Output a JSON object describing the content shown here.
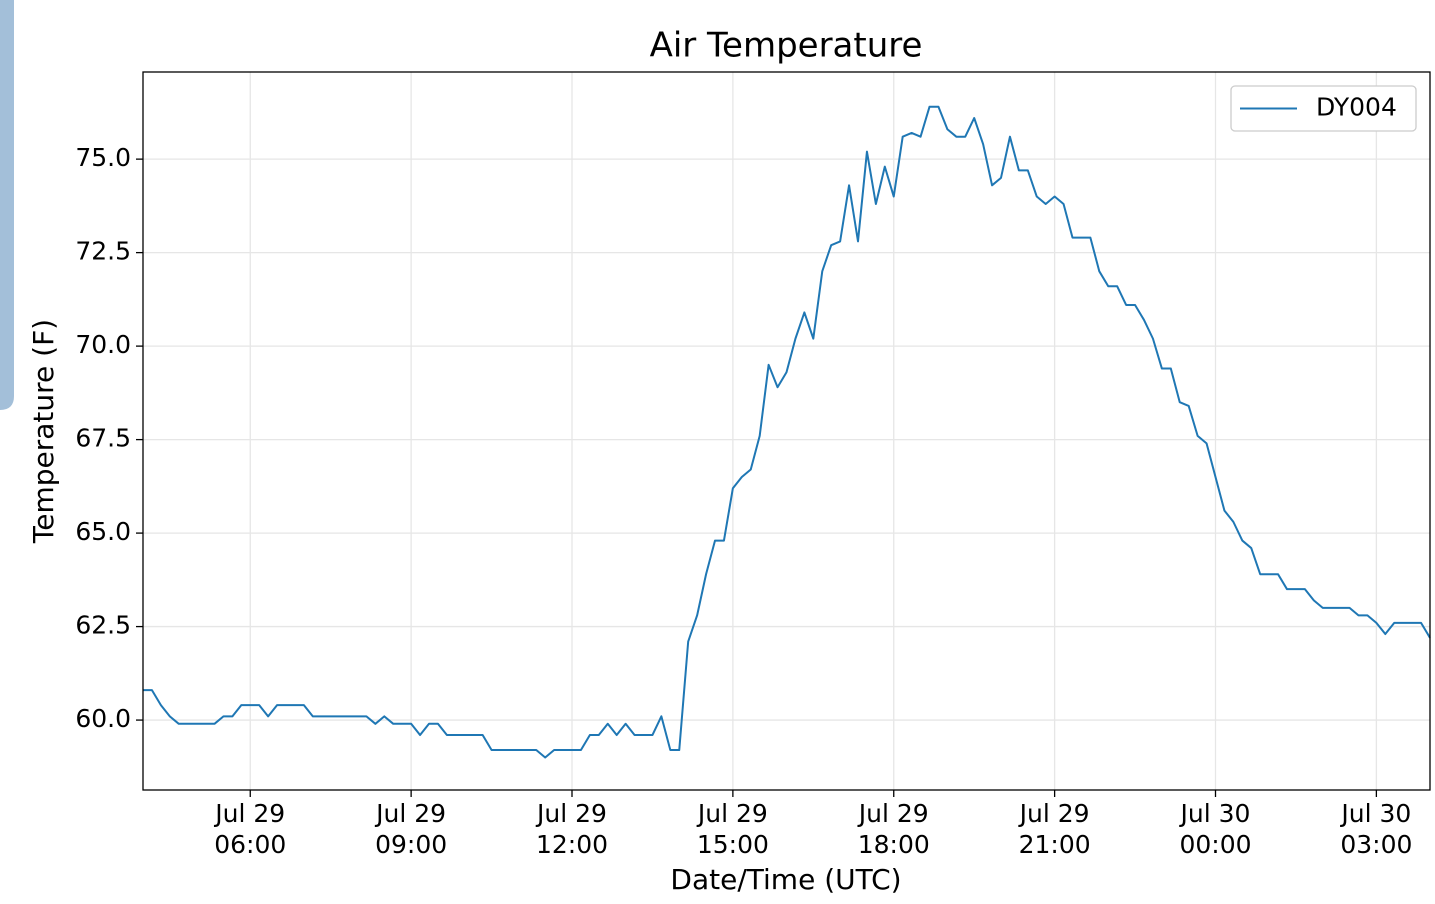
{
  "chart_data": {
    "type": "line",
    "title": "Air Temperature",
    "xlabel": "Date/Time (UTC)",
    "ylabel": "Temperature (F)",
    "x": [
      "Jul 29 04:00",
      "Jul 29 04:10",
      "Jul 29 04:20",
      "Jul 29 04:30",
      "Jul 29 04:40",
      "Jul 29 04:50",
      "Jul 29 05:00",
      "Jul 29 05:10",
      "Jul 29 05:20",
      "Jul 29 05:30",
      "Jul 29 05:40",
      "Jul 29 05:50",
      "Jul 29 06:00",
      "Jul 29 06:10",
      "Jul 29 06:20",
      "Jul 29 06:30",
      "Jul 29 06:40",
      "Jul 29 06:50",
      "Jul 29 07:00",
      "Jul 29 07:10",
      "Jul 29 07:20",
      "Jul 29 07:30",
      "Jul 29 07:40",
      "Jul 29 07:50",
      "Jul 29 08:00",
      "Jul 29 08:10",
      "Jul 29 08:20",
      "Jul 29 08:30",
      "Jul 29 08:40",
      "Jul 29 08:50",
      "Jul 29 09:00",
      "Jul 29 09:10",
      "Jul 29 09:20",
      "Jul 29 09:30",
      "Jul 29 09:40",
      "Jul 29 09:50",
      "Jul 29 10:00",
      "Jul 29 10:10",
      "Jul 29 10:20",
      "Jul 29 10:30",
      "Jul 29 10:40",
      "Jul 29 10:50",
      "Jul 29 11:00",
      "Jul 29 11:10",
      "Jul 29 11:20",
      "Jul 29 11:30",
      "Jul 29 11:40",
      "Jul 29 11:50",
      "Jul 29 12:00",
      "Jul 29 12:10",
      "Jul 29 12:20",
      "Jul 29 12:30",
      "Jul 29 12:40",
      "Jul 29 12:50",
      "Jul 29 13:00",
      "Jul 29 13:10",
      "Jul 29 13:20",
      "Jul 29 13:30",
      "Jul 29 13:40",
      "Jul 29 13:50",
      "Jul 29 14:00",
      "Jul 29 14:10",
      "Jul 29 14:20",
      "Jul 29 14:30",
      "Jul 29 14:40",
      "Jul 29 14:50",
      "Jul 29 15:00",
      "Jul 29 15:10",
      "Jul 29 15:20",
      "Jul 29 15:30",
      "Jul 29 15:40",
      "Jul 29 15:50",
      "Jul 29 16:00",
      "Jul 29 16:10",
      "Jul 29 16:20",
      "Jul 29 16:30",
      "Jul 29 16:40",
      "Jul 29 16:50",
      "Jul 29 17:00",
      "Jul 29 17:10",
      "Jul 29 17:20",
      "Jul 29 17:30",
      "Jul 29 17:40",
      "Jul 29 17:50",
      "Jul 29 18:00",
      "Jul 29 18:10",
      "Jul 29 18:20",
      "Jul 29 18:30",
      "Jul 29 18:40",
      "Jul 29 18:50",
      "Jul 29 19:00",
      "Jul 29 19:10",
      "Jul 29 19:20",
      "Jul 29 19:30",
      "Jul 29 19:40",
      "Jul 29 19:50",
      "Jul 29 20:00",
      "Jul 29 20:10",
      "Jul 29 20:20",
      "Jul 29 20:30",
      "Jul 29 20:40",
      "Jul 29 20:50",
      "Jul 29 21:00",
      "Jul 29 21:10",
      "Jul 29 21:20",
      "Jul 29 21:30",
      "Jul 29 21:40",
      "Jul 29 21:50",
      "Jul 29 22:00",
      "Jul 29 22:10",
      "Jul 29 22:20",
      "Jul 29 22:30",
      "Jul 29 22:40",
      "Jul 29 22:50",
      "Jul 29 23:00",
      "Jul 29 23:10",
      "Jul 29 23:20",
      "Jul 29 23:30",
      "Jul 29 23:40",
      "Jul 29 23:50",
      "Jul 30 00:00",
      "Jul 30 00:10",
      "Jul 30 00:20",
      "Jul 30 00:30",
      "Jul 30 00:40",
      "Jul 30 00:50",
      "Jul 30 01:00",
      "Jul 30 01:10",
      "Jul 30 01:20",
      "Jul 30 01:30",
      "Jul 30 01:40",
      "Jul 30 01:50",
      "Jul 30 02:00",
      "Jul 30 02:10",
      "Jul 30 02:20",
      "Jul 30 02:30",
      "Jul 30 02:40",
      "Jul 30 02:50",
      "Jul 30 03:00",
      "Jul 30 03:10",
      "Jul 30 03:20",
      "Jul 30 03:30",
      "Jul 30 03:40",
      "Jul 30 03:50",
      "Jul 30 04:00"
    ],
    "series": [
      {
        "name": "DY004",
        "color": "#1f77b4",
        "values": [
          60.8,
          60.8,
          60.4,
          60.1,
          59.9,
          59.9,
          59.9,
          59.9,
          59.9,
          60.1,
          60.1,
          60.4,
          60.4,
          60.4,
          60.1,
          60.4,
          60.4,
          60.4,
          60.4,
          60.1,
          60.1,
          60.1,
          60.1,
          60.1,
          60.1,
          60.1,
          59.9,
          60.1,
          59.9,
          59.9,
          59.9,
          59.6,
          59.9,
          59.9,
          59.6,
          59.6,
          59.6,
          59.6,
          59.6,
          59.2,
          59.2,
          59.2,
          59.2,
          59.2,
          59.2,
          59.0,
          59.2,
          59.2,
          59.2,
          59.2,
          59.6,
          59.6,
          59.9,
          59.6,
          59.9,
          59.6,
          59.6,
          59.6,
          60.1,
          59.2,
          59.2,
          62.1,
          62.8,
          63.9,
          64.8,
          64.8,
          66.2,
          66.5,
          66.7,
          67.6,
          69.5,
          68.9,
          69.3,
          70.2,
          70.9,
          70.2,
          72.0,
          72.7,
          72.8,
          74.3,
          72.8,
          75.2,
          73.8,
          74.8,
          74.0,
          75.6,
          75.7,
          75.6,
          76.4,
          76.4,
          75.8,
          75.6,
          75.6,
          76.1,
          75.4,
          74.3,
          74.5,
          75.6,
          74.7,
          74.7,
          74.0,
          73.8,
          74.0,
          73.8,
          72.9,
          72.9,
          72.9,
          72.0,
          71.6,
          71.6,
          71.1,
          71.1,
          70.7,
          70.2,
          69.4,
          69.4,
          68.5,
          68.4,
          67.6,
          67.4,
          66.5,
          65.6,
          65.3,
          64.8,
          64.6,
          63.9,
          63.9,
          63.9,
          63.5,
          63.5,
          63.5,
          63.2,
          63.0,
          63.0,
          63.0,
          63.0,
          62.8,
          62.8,
          62.6,
          62.3,
          62.6,
          62.6,
          62.6,
          62.6,
          62.2
        ]
      }
    ],
    "xlim": [
      "Jul 29 04:00",
      "Jul 30 04:00"
    ],
    "xticks": [
      {
        "value": "Jul 29 06:00",
        "label": [
          "Jul 29",
          "06:00"
        ]
      },
      {
        "value": "Jul 29 09:00",
        "label": [
          "Jul 29",
          "09:00"
        ]
      },
      {
        "value": "Jul 29 12:00",
        "label": [
          "Jul 29",
          "12:00"
        ]
      },
      {
        "value": "Jul 29 15:00",
        "label": [
          "Jul 29",
          "15:00"
        ]
      },
      {
        "value": "Jul 29 18:00",
        "label": [
          "Jul 29",
          "18:00"
        ]
      },
      {
        "value": "Jul 29 21:00",
        "label": [
          "Jul 29",
          "21:00"
        ]
      },
      {
        "value": "Jul 30 00:00",
        "label": [
          "Jul 30",
          "00:00"
        ]
      },
      {
        "value": "Jul 30 03:00",
        "label": [
          "Jul 30",
          "03:00"
        ]
      }
    ],
    "ylim": [
      58.13,
      77.33
    ],
    "yticks": [
      {
        "value": 60,
        "label": "60.0"
      },
      62.5,
      {
        "value": 65,
        "label": "65.0"
      },
      67.5,
      {
        "value": 70,
        "label": "70.0"
      },
      72.5,
      {
        "value": 75,
        "label": "75.0"
      }
    ],
    "grid": true,
    "legend": "upper right"
  }
}
